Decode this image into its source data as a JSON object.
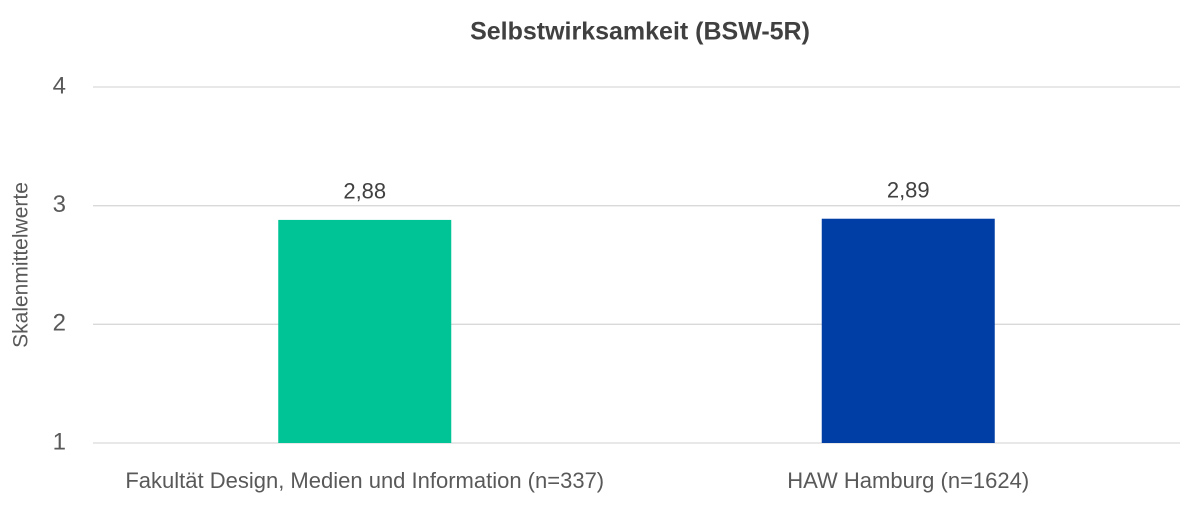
{
  "chart_data": {
    "type": "bar",
    "title": "Selbstwirksamkeit (BSW-5R)",
    "y_label": "Skalenmittelwerte",
    "categories": [
      "Fakultät Design, Medien und Information (n=337)",
      "HAW Hamburg (n=1624)"
    ],
    "values": [
      2.88,
      2.89
    ],
    "value_labels": [
      "2,88",
      "2,89"
    ],
    "colors": [
      "#00c495",
      "#003da5"
    ],
    "ylim": [
      1,
      4
    ],
    "yticks": [
      1,
      2,
      3,
      4
    ],
    "grid": true
  }
}
